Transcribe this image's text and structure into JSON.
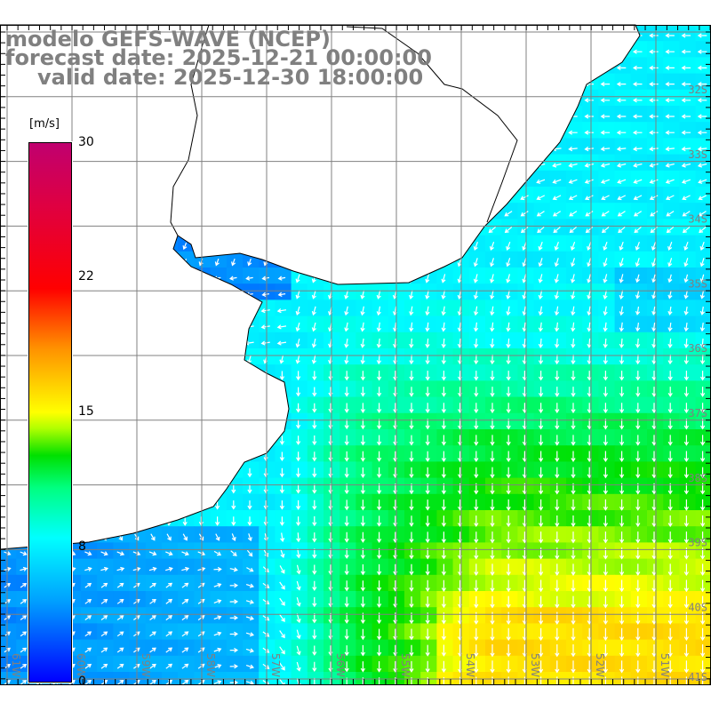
{
  "title": {
    "line1": "modelo GEFS-WAVE (NCEP)",
    "line2": "forecast date: 2025-12-21 00:00:00",
    "line3": "valid date: 2025-12-30 18:00:00"
  },
  "colorbar": {
    "unit": "[m/s]",
    "ticks": [
      "30",
      "22",
      "15",
      "8",
      "0"
    ],
    "colors": [
      "#0000ff",
      "#00ffff",
      "#00e000",
      "#ffff00",
      "#ff0000",
      "#c0006f"
    ]
  },
  "axes": {
    "lon_labels": [
      "61W",
      "60W",
      "59W",
      "58W",
      "57W",
      "56W",
      "55W",
      "54W",
      "53W",
      "52W",
      "51W"
    ],
    "lat_labels": [
      "32S",
      "33S",
      "34S",
      "35S",
      "36S",
      "37S",
      "38S",
      "39S",
      "40S",
      "41S"
    ],
    "grid_color": "#808080"
  },
  "field": {
    "variable": "wind speed and direction",
    "land_color": "#ffffff",
    "arrow_color": "#ffffff"
  }
}
